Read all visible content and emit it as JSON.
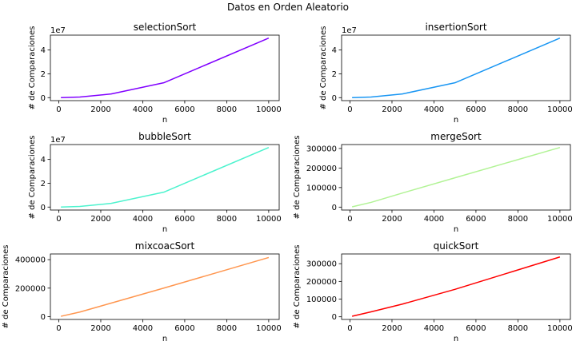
{
  "figure": {
    "suptitle": "Datos en Orden Aleatorio"
  },
  "chart_data": [
    {
      "type": "line",
      "title": "selectionSort",
      "xlabel": "n",
      "ylabel": "# de Comparaciones",
      "x": [
        100,
        1000,
        2500,
        5000,
        10000
      ],
      "series": [
        {
          "values": [
            4950,
            499500,
            3123750,
            12497500,
            49995000
          ]
        }
      ],
      "color": "#8000ff",
      "xlim": [
        -400,
        10500
      ],
      "ylim": [
        -2500000,
        52500000
      ],
      "xticks": [
        0,
        2000,
        4000,
        6000,
        8000,
        10000
      ],
      "xtick_labels": [
        "0",
        "2000",
        "4000",
        "6000",
        "8000",
        "10000"
      ],
      "yticks": [
        0,
        20000000,
        40000000
      ],
      "ytick_labels": [
        "0",
        "2",
        "4"
      ],
      "offset_text": "1e7",
      "grid": false
    },
    {
      "type": "line",
      "title": "insertionSort",
      "xlabel": "n",
      "ylabel": "# de Comparaciones",
      "x": [
        100,
        1000,
        2500,
        5000,
        10000
      ],
      "series": [
        {
          "values": [
            4950,
            499500,
            3123750,
            12497500,
            49995000
          ]
        }
      ],
      "color": "#1996f3",
      "xlim": [
        -400,
        10500
      ],
      "ylim": [
        -2500000,
        52500000
      ],
      "xticks": [
        0,
        2000,
        4000,
        6000,
        8000,
        10000
      ],
      "xtick_labels": [
        "0",
        "2000",
        "4000",
        "6000",
        "8000",
        "10000"
      ],
      "yticks": [
        0,
        20000000,
        40000000
      ],
      "ytick_labels": [
        "0",
        "2",
        "4"
      ],
      "offset_text": "1e7",
      "grid": false
    },
    {
      "type": "line",
      "title": "bubbleSort",
      "xlabel": "n",
      "ylabel": "# de Comparaciones",
      "x": [
        100,
        1000,
        2500,
        5000,
        10000
      ],
      "series": [
        {
          "values": [
            4950,
            499500,
            3123750,
            12497500,
            49995000
          ]
        }
      ],
      "color": "#4df3ce",
      "xlim": [
        -400,
        10500
      ],
      "ylim": [
        -2500000,
        52500000
      ],
      "xticks": [
        0,
        2000,
        4000,
        6000,
        8000,
        10000
      ],
      "xtick_labels": [
        "0",
        "2000",
        "4000",
        "6000",
        "8000",
        "10000"
      ],
      "yticks": [
        0,
        20000000,
        40000000
      ],
      "ytick_labels": [
        "0",
        "2",
        "4"
      ],
      "offset_text": "1e7",
      "grid": false
    },
    {
      "type": "line",
      "title": "mergeSort",
      "xlabel": "n",
      "ylabel": "# de Comparaciones",
      "x": [
        100,
        1000,
        2500,
        5000,
        10000
      ],
      "series": [
        {
          "values": [
            1500,
            24000,
            72000,
            150000,
            305000
          ]
        }
      ],
      "color": "#b2f396",
      "xlim": [
        -400,
        10500
      ],
      "ylim": [
        -15000,
        320000
      ],
      "xticks": [
        0,
        2000,
        4000,
        6000,
        8000,
        10000
      ],
      "xtick_labels": [
        "0",
        "2000",
        "4000",
        "6000",
        "8000",
        "10000"
      ],
      "yticks": [
        0,
        100000,
        200000,
        300000
      ],
      "ytick_labels": [
        "0",
        "100000",
        "200000",
        "300000"
      ],
      "offset_text": "",
      "grid": false
    },
    {
      "type": "line",
      "title": "mixcoacSort",
      "xlabel": "n",
      "ylabel": "# de Comparaciones",
      "x": [
        100,
        1000,
        2500,
        5000,
        10000
      ],
      "series": [
        {
          "values": [
            2000,
            32000,
            95000,
            200000,
            415000
          ]
        }
      ],
      "color": "#ff964f",
      "xlim": [
        -400,
        10500
      ],
      "ylim": [
        -20000,
        440000
      ],
      "xticks": [
        0,
        2000,
        4000,
        6000,
        8000,
        10000
      ],
      "xtick_labels": [
        "0",
        "2000",
        "4000",
        "6000",
        "8000",
        "10000"
      ],
      "yticks": [
        0,
        200000,
        400000
      ],
      "ytick_labels": [
        "0",
        "200000",
        "400000"
      ],
      "offset_text": "",
      "grid": false
    },
    {
      "type": "line",
      "title": "quickSort",
      "xlabel": "n",
      "ylabel": "# de Comparaciones",
      "x": [
        100,
        1000,
        2500,
        5000,
        10000
      ],
      "series": [
        {
          "values": [
            3000,
            28000,
            72000,
            155000,
            338000
          ]
        }
      ],
      "color": "#ff0000",
      "xlim": [
        -400,
        10500
      ],
      "ylim": [
        -15000,
        355000
      ],
      "xticks": [
        0,
        2000,
        4000,
        6000,
        8000,
        10000
      ],
      "xtick_labels": [
        "0",
        "2000",
        "4000",
        "6000",
        "8000",
        "10000"
      ],
      "yticks": [
        0,
        100000,
        200000,
        300000
      ],
      "ytick_labels": [
        "0",
        "100000",
        "200000",
        "300000"
      ],
      "offset_text": "",
      "grid": false
    }
  ]
}
